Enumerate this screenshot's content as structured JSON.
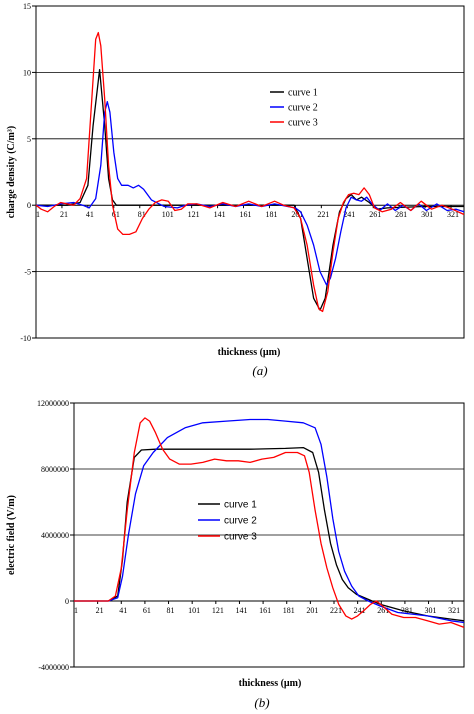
{
  "chart_data": [
    {
      "type": "line",
      "caption": "(a)",
      "xlabel": "thickness (µm)",
      "ylabel": "charge density (C/m³)",
      "ylim": [
        -10,
        15
      ],
      "yticks": [
        15,
        10,
        5,
        0,
        -5,
        -10
      ],
      "xlim": [
        1,
        331
      ],
      "xticks": [
        1,
        21,
        41,
        61,
        81,
        101,
        121,
        141,
        161,
        181,
        201,
        221,
        241,
        261,
        281,
        301,
        321
      ],
      "grid": "horizontal",
      "legend_position": "right",
      "series": [
        {
          "name": "curve 1",
          "color": "#000000",
          "points": [
            [
              1,
              0
            ],
            [
              25,
              0
            ],
            [
              35,
              0.2
            ],
            [
              41,
              1.5
            ],
            [
              45,
              6
            ],
            [
              50,
              10.2
            ],
            [
              54,
              6
            ],
            [
              57,
              2
            ],
            [
              60,
              0.4
            ],
            [
              63,
              0
            ],
            [
              200,
              0
            ],
            [
              205,
              -1
            ],
            [
              210,
              -4
            ],
            [
              215,
              -7
            ],
            [
              220,
              -7.9
            ],
            [
              224,
              -7
            ],
            [
              230,
              -3
            ],
            [
              235,
              -0.5
            ],
            [
              240,
              0.5
            ],
            [
              244,
              0.8
            ],
            [
              248,
              0.4
            ],
            [
              252,
              0.6
            ],
            [
              258,
              0.2
            ],
            [
              264,
              -0.3
            ],
            [
              272,
              -0.2
            ],
            [
              300,
              -0.1
            ],
            [
              331,
              -0.1
            ]
          ]
        },
        {
          "name": "curve 2",
          "color": "#0000ff",
          "points": [
            [
              1,
              0
            ],
            [
              10,
              -0.1
            ],
            [
              20,
              0.1
            ],
            [
              30,
              0.2
            ],
            [
              37,
              0
            ],
            [
              42,
              -0.2
            ],
            [
              47,
              0.5
            ],
            [
              51,
              3
            ],
            [
              54,
              7
            ],
            [
              56,
              7.8
            ],
            [
              58,
              7
            ],
            [
              61,
              4
            ],
            [
              64,
              2
            ],
            [
              67,
              1.5
            ],
            [
              72,
              1.5
            ],
            [
              76,
              1.3
            ],
            [
              80,
              1.5
            ],
            [
              84,
              1.2
            ],
            [
              90,
              0.4
            ],
            [
              96,
              0.1
            ],
            [
              100,
              -0.1
            ],
            [
              110,
              -0.2
            ],
            [
              116,
              0
            ],
            [
              125,
              0.1
            ],
            [
              135,
              -0.1
            ],
            [
              145,
              0.1
            ],
            [
              155,
              -0.1
            ],
            [
              165,
              0.1
            ],
            [
              175,
              -0.1
            ],
            [
              185,
              0.1
            ],
            [
              195,
              -0.1
            ],
            [
              201,
              -0.2
            ],
            [
              205,
              -0.5
            ],
            [
              210,
              -1.5
            ],
            [
              215,
              -3
            ],
            [
              220,
              -5
            ],
            [
              225,
              -6
            ],
            [
              228,
              -5.5
            ],
            [
              232,
              -4
            ],
            [
              236,
              -2
            ],
            [
              240,
              -0.2
            ],
            [
              244,
              0.6
            ],
            [
              248,
              0.4
            ],
            [
              252,
              0.3
            ],
            [
              256,
              0.6
            ],
            [
              260,
              0.1
            ],
            [
              266,
              -0.4
            ],
            [
              272,
              0.1
            ],
            [
              278,
              -0.4
            ],
            [
              284,
              0
            ],
            [
              290,
              -0.4
            ],
            [
              296,
              0.1
            ],
            [
              302,
              -0.4
            ],
            [
              310,
              0.1
            ],
            [
              318,
              -0.4
            ],
            [
              325,
              -0.3
            ],
            [
              331,
              -0.5
            ]
          ]
        },
        {
          "name": "curve 3",
          "color": "#ff0000",
          "points": [
            [
              1,
              0
            ],
            [
              5,
              -0.3
            ],
            [
              10,
              -0.5
            ],
            [
              15,
              -0.1
            ],
            [
              20,
              0.2
            ],
            [
              25,
              0.1
            ],
            [
              30,
              0
            ],
            [
              35,
              0.5
            ],
            [
              40,
              2
            ],
            [
              44,
              8
            ],
            [
              47,
              12.5
            ],
            [
              49,
              13
            ],
            [
              51,
              12
            ],
            [
              54,
              8
            ],
            [
              57,
              3
            ],
            [
              60,
              0
            ],
            [
              64,
              -1.8
            ],
            [
              68,
              -2.2
            ],
            [
              73,
              -2.2
            ],
            [
              78,
              -2
            ],
            [
              83,
              -1
            ],
            [
              88,
              -0.3
            ],
            [
              93,
              0.2
            ],
            [
              98,
              0.4
            ],
            [
              103,
              0.3
            ],
            [
              108,
              -0.4
            ],
            [
              113,
              -0.3
            ],
            [
              118,
              0.1
            ],
            [
              125,
              0.1
            ],
            [
              135,
              -0.2
            ],
            [
              145,
              0.2
            ],
            [
              155,
              -0.1
            ],
            [
              165,
              0.3
            ],
            [
              175,
              -0.1
            ],
            [
              185,
              0.3
            ],
            [
              192,
              0
            ],
            [
              200,
              -0.2
            ],
            [
              205,
              -1
            ],
            [
              210,
              -3
            ],
            [
              215,
              -6
            ],
            [
              219,
              -7.8
            ],
            [
              222,
              -8
            ],
            [
              226,
              -6.5
            ],
            [
              230,
              -3.5
            ],
            [
              234,
              -1
            ],
            [
              238,
              0.2
            ],
            [
              242,
              0.8
            ],
            [
              246,
              0.9
            ],
            [
              250,
              0.8
            ],
            [
              254,
              1.3
            ],
            [
              258,
              0.8
            ],
            [
              262,
              -0.2
            ],
            [
              268,
              -0.5
            ],
            [
              275,
              -0.3
            ],
            [
              282,
              0.2
            ],
            [
              290,
              -0.4
            ],
            [
              298,
              0.3
            ],
            [
              306,
              -0.3
            ],
            [
              314,
              0
            ],
            [
              322,
              -0.3
            ],
            [
              331,
              -0.7
            ]
          ]
        }
      ]
    },
    {
      "type": "line",
      "caption": "(b)",
      "xlabel": "thickness (µm)",
      "ylabel": "electric field (V/m)",
      "ylim": [
        -4000000,
        12000000
      ],
      "yticks": [
        12000000,
        8000000,
        4000000,
        0,
        -4000000
      ],
      "ytick_labels": [
        "12000000",
        "8000000",
        "4000000",
        "0",
        "-4000000"
      ],
      "xlim": [
        1,
        331
      ],
      "xticks": [
        1,
        21,
        41,
        61,
        81,
        101,
        121,
        141,
        161,
        181,
        201,
        221,
        241,
        261,
        281,
        301,
        321
      ],
      "grid": "horizontal",
      "legend_position": "center",
      "series": [
        {
          "name": "curve 1",
          "color": "#000000",
          "points": [
            [
              1,
              0
            ],
            [
              30,
              0
            ],
            [
              38,
              300000
            ],
            [
              42,
              2500000
            ],
            [
              46,
              6000000
            ],
            [
              52,
              8700000
            ],
            [
              58,
              9150000
            ],
            [
              70,
              9200000
            ],
            [
              100,
              9200000
            ],
            [
              150,
              9200000
            ],
            [
              180,
              9250000
            ],
            [
              195,
              9300000
            ],
            [
              203,
              9000000
            ],
            [
              208,
              7800000
            ],
            [
              213,
              5500000
            ],
            [
              218,
              3500000
            ],
            [
              223,
              2200000
            ],
            [
              228,
              1300000
            ],
            [
              233,
              800000
            ],
            [
              240,
              400000
            ],
            [
              250,
              100000
            ],
            [
              260,
              -200000
            ],
            [
              280,
              -600000
            ],
            [
              300,
              -900000
            ],
            [
              320,
              -1100000
            ],
            [
              331,
              -1200000
            ]
          ]
        },
        {
          "name": "curve 2",
          "color": "#0000ff",
          "points": [
            [
              1,
              0
            ],
            [
              30,
              0
            ],
            [
              38,
              200000
            ],
            [
              42,
              1500000
            ],
            [
              47,
              4000000
            ],
            [
              53,
              6500000
            ],
            [
              60,
              8200000
            ],
            [
              68,
              9000000
            ],
            [
              80,
              9900000
            ],
            [
              95,
              10500000
            ],
            [
              110,
              10800000
            ],
            [
              130,
              10900000
            ],
            [
              150,
              11000000
            ],
            [
              165,
              11000000
            ],
            [
              180,
              10900000
            ],
            [
              195,
              10800000
            ],
            [
              205,
              10500000
            ],
            [
              210,
              9500000
            ],
            [
              215,
              7500000
            ],
            [
              220,
              5000000
            ],
            [
              225,
              3000000
            ],
            [
              230,
              1800000
            ],
            [
              236,
              900000
            ],
            [
              242,
              300000
            ],
            [
              250,
              0
            ],
            [
              260,
              -300000
            ],
            [
              275,
              -700000
            ],
            [
              300,
              -900000
            ],
            [
              320,
              -1200000
            ],
            [
              331,
              -1300000
            ]
          ]
        },
        {
          "name": "curve 3",
          "color": "#ff0000",
          "points": [
            [
              1,
              0
            ],
            [
              30,
              0
            ],
            [
              36,
              300000
            ],
            [
              41,
              2000000
            ],
            [
              46,
              5500000
            ],
            [
              52,
              9000000
            ],
            [
              57,
              10800000
            ],
            [
              61,
              11100000
            ],
            [
              65,
              10900000
            ],
            [
              70,
              10200000
            ],
            [
              76,
              9200000
            ],
            [
              82,
              8600000
            ],
            [
              90,
              8300000
            ],
            [
              100,
              8300000
            ],
            [
              110,
              8400000
            ],
            [
              120,
              8600000
            ],
            [
              130,
              8500000
            ],
            [
              140,
              8500000
            ],
            [
              150,
              8400000
            ],
            [
              160,
              8600000
            ],
            [
              170,
              8700000
            ],
            [
              180,
              9000000
            ],
            [
              190,
              9000000
            ],
            [
              196,
              8800000
            ],
            [
              200,
              7800000
            ],
            [
              205,
              5500000
            ],
            [
              210,
              3500000
            ],
            [
              215,
              2000000
            ],
            [
              220,
              800000
            ],
            [
              225,
              -200000
            ],
            [
              231,
              -900000
            ],
            [
              236,
              -1100000
            ],
            [
              241,
              -900000
            ],
            [
              246,
              -600000
            ],
            [
              252,
              -200000
            ],
            [
              257,
              0
            ],
            [
              262,
              -300000
            ],
            [
              270,
              -800000
            ],
            [
              280,
              -1000000
            ],
            [
              290,
              -1000000
            ],
            [
              300,
              -1200000
            ],
            [
              310,
              -1400000
            ],
            [
              320,
              -1300000
            ],
            [
              331,
              -1600000
            ]
          ]
        }
      ]
    }
  ]
}
